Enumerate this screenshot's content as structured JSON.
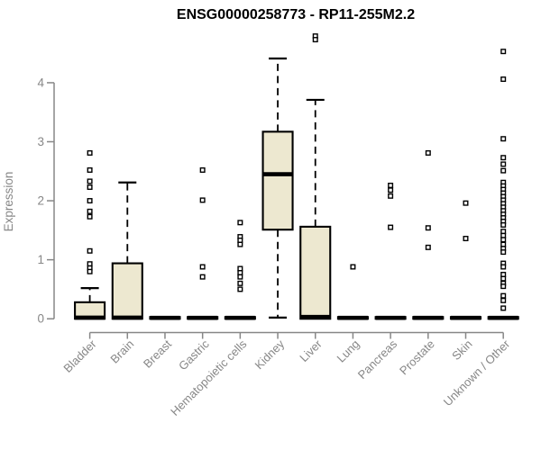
{
  "colors": {
    "background": "#FFFFFF",
    "title": "#000000",
    "axis": "#878787",
    "tick_label": "#878787",
    "box_fill": "#EDE8D0",
    "box_border": "#000000",
    "median": "#000000",
    "whisker": "#000000",
    "outlier_fill": "#FFFFFF",
    "outlier_border": "#000000"
  },
  "chart_data": {
    "type": "boxplot",
    "title": "ENSG00000258773 - RP11-255M2.2",
    "xlabel": "",
    "ylabel": "Expression",
    "ylim": [
      0,
      4.85
    ],
    "yticks": [
      0,
      1,
      2,
      3,
      4
    ],
    "grid": false,
    "legend": false,
    "categories": [
      "Bladder",
      "Brain",
      "Breast",
      "Gastric",
      "Hematopoietic cells",
      "Kidney",
      "Liver",
      "Lung",
      "Pancreas",
      "Prostate",
      "Skin",
      "Unknown / Other"
    ],
    "boxes": [
      {
        "category": "Bladder",
        "q1": 0,
        "median": 0.02,
        "q3": 0.28,
        "whisker_low": 0,
        "whisker_high": 0.52,
        "outliers": [
          2.81,
          2.52,
          2.33,
          2.23,
          2.0,
          1.82,
          1.73,
          1.15,
          0.93,
          0.86,
          0.8
        ]
      },
      {
        "category": "Brain",
        "q1": 0,
        "median": 0.02,
        "q3": 0.94,
        "whisker_low": 0,
        "whisker_high": 2.31,
        "outliers": []
      },
      {
        "category": "Breast",
        "q1": 0,
        "median": 0.015,
        "q3": 0.03,
        "whisker_low": 0,
        "whisker_high": 0.03,
        "outliers": []
      },
      {
        "category": "Gastric",
        "q1": 0,
        "median": 0.015,
        "q3": 0.03,
        "whisker_low": 0,
        "whisker_high": 0.03,
        "outliers": [
          2.52,
          2.01,
          0.88,
          0.71
        ]
      },
      {
        "category": "Hematopoietic cells",
        "q1": 0,
        "median": 0.015,
        "q3": 0.03,
        "whisker_low": 0,
        "whisker_high": 0.03,
        "outliers": [
          1.63,
          1.39,
          1.33,
          1.26,
          0.85,
          0.78,
          0.71,
          0.6,
          0.5
        ]
      },
      {
        "category": "Kidney",
        "q1": 1.51,
        "median": 2.45,
        "q3": 3.17,
        "whisker_low": 0.02,
        "whisker_high": 4.41,
        "outliers": []
      },
      {
        "category": "Liver",
        "q1": 0,
        "median": 0.03,
        "q3": 1.56,
        "whisker_low": 0,
        "whisker_high": 3.71,
        "outliers": [
          4.79,
          4.73
        ]
      },
      {
        "category": "Lung",
        "q1": 0,
        "median": 0.015,
        "q3": 0.03,
        "whisker_low": 0,
        "whisker_high": 0.03,
        "outliers": [
          0.88
        ]
      },
      {
        "category": "Pancreas",
        "q1": 0,
        "median": 0.015,
        "q3": 0.03,
        "whisker_low": 0,
        "whisker_high": 0.03,
        "outliers": [
          2.26,
          2.18,
          2.08,
          1.55
        ]
      },
      {
        "category": "Prostate",
        "q1": 0,
        "median": 0.015,
        "q3": 0.03,
        "whisker_low": 0,
        "whisker_high": 0.03,
        "outliers": [
          2.81,
          1.54,
          1.21
        ]
      },
      {
        "category": "Skin",
        "q1": 0,
        "median": 0.015,
        "q3": 0.03,
        "whisker_low": 0,
        "whisker_high": 0.03,
        "outliers": [
          1.96,
          1.36
        ]
      },
      {
        "category": "Unknown / Other",
        "q1": 0,
        "median": 0.015,
        "q3": 0.03,
        "whisker_low": 0,
        "whisker_high": 0.03,
        "outliers": [
          4.53,
          4.06,
          3.05,
          2.73,
          2.62,
          2.51,
          2.31,
          2.25,
          2.19,
          2.13,
          2.07,
          2.01,
          1.95,
          1.89,
          1.83,
          1.77,
          1.71,
          1.65,
          1.59,
          1.48,
          1.41,
          1.34,
          1.26,
          1.19,
          1.13,
          0.94,
          0.88,
          0.75,
          0.68,
          0.6,
          0.55,
          0.39,
          0.31,
          0.18
        ]
      }
    ]
  }
}
